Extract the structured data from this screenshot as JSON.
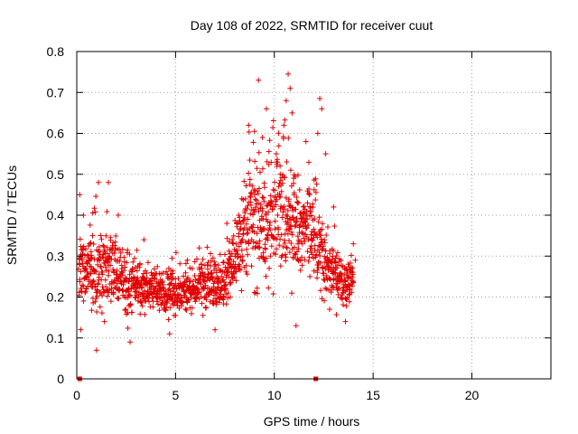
{
  "chart_data": {
    "type": "scatter",
    "title": "Day 108 of 2022, SRMTID for receiver cuut",
    "xlabel": "GPS time / hours",
    "ylabel": "SRMTID / TECUs",
    "xlim": [
      0,
      24
    ],
    "ylim": [
      0,
      0.8
    ],
    "xticks": [
      0,
      5,
      10,
      15,
      20
    ],
    "xtick_labels": [
      "0",
      "5",
      "10",
      "15",
      "20"
    ],
    "yticks": [
      0,
      0.1,
      0.2,
      0.3,
      0.4,
      0.5,
      0.6,
      0.7,
      0.8
    ],
    "ytick_labels": [
      "0",
      "0.1",
      "0.2",
      "0.3",
      "0.4",
      "0.5",
      "0.6",
      "0.7",
      "0.8"
    ],
    "grid": true,
    "marker": "+",
    "color": "#e00000",
    "series": [
      {
        "name": "SRMTID",
        "envelope": {
          "x": [
            0.1,
            0.5,
            1.0,
            1.5,
            2.0,
            2.5,
            3.0,
            3.5,
            4.0,
            4.5,
            5.0,
            5.5,
            6.0,
            6.5,
            7.0,
            7.5,
            8.0,
            8.5,
            9.0,
            9.5,
            10.0,
            10.5,
            11.0,
            11.5,
            12.0,
            12.5,
            13.0,
            13.5,
            14.0
          ],
          "y_low": [
            0.12,
            0.15,
            0.1,
            0.12,
            0.14,
            0.1,
            0.15,
            0.14,
            0.15,
            0.12,
            0.12,
            0.14,
            0.15,
            0.14,
            0.13,
            0.15,
            0.17,
            0.16,
            0.15,
            0.13,
            0.14,
            0.16,
            0.18,
            0.2,
            0.18,
            0.15,
            0.13,
            0.14,
            0.17
          ],
          "y_high": [
            0.45,
            0.4,
            0.48,
            0.47,
            0.4,
            0.34,
            0.35,
            0.33,
            0.3,
            0.3,
            0.32,
            0.3,
            0.32,
            0.35,
            0.33,
            0.36,
            0.42,
            0.62,
            0.72,
            0.65,
            0.72,
            0.74,
            0.62,
            0.55,
            0.6,
            0.45,
            0.42,
            0.33,
            0.33
          ]
        },
        "points": [
          [
            0.15,
            0.45
          ],
          [
            0.2,
            0.12
          ],
          [
            0.3,
            0.32
          ],
          [
            0.8,
            0.35
          ],
          [
            1.0,
            0.07
          ],
          [
            1.1,
            0.48
          ],
          [
            1.6,
            0.48
          ],
          [
            1.4,
            0.14
          ],
          [
            2.1,
            0.4
          ],
          [
            2.7,
            0.09
          ],
          [
            3.4,
            0.34
          ],
          [
            4.7,
            0.11
          ],
          [
            5.6,
            0.29
          ],
          [
            6.2,
            0.32
          ],
          [
            7.0,
            0.12
          ],
          [
            7.6,
            0.38
          ],
          [
            8.2,
            0.4
          ],
          [
            8.4,
            0.3
          ],
          [
            8.7,
            0.62
          ],
          [
            9.0,
            0.45
          ],
          [
            9.2,
            0.73
          ],
          [
            9.4,
            0.59
          ],
          [
            9.6,
            0.66
          ],
          [
            9.8,
            0.3
          ],
          [
            10.1,
            0.55
          ],
          [
            10.3,
            0.5
          ],
          [
            10.6,
            0.68
          ],
          [
            10.7,
            0.745
          ],
          [
            10.8,
            0.71
          ],
          [
            10.9,
            0.65
          ],
          [
            11.0,
            0.45
          ],
          [
            11.1,
            0.13
          ],
          [
            11.2,
            0.33
          ],
          [
            11.6,
            0.58
          ],
          [
            11.8,
            0.25
          ],
          [
            12.2,
            0.6
          ],
          [
            12.3,
            0.685
          ],
          [
            12.4,
            0.66
          ],
          [
            12.6,
            0.55
          ],
          [
            12.8,
            0.17
          ],
          [
            13.0,
            0.42
          ],
          [
            13.3,
            0.25
          ],
          [
            13.6,
            0.14
          ],
          [
            14.0,
            0.33
          ],
          [
            14.1,
            0.29
          ]
        ],
        "zero_markers": [
          [
            0.15,
            0.0
          ],
          [
            12.1,
            0.0
          ]
        ]
      }
    ]
  }
}
